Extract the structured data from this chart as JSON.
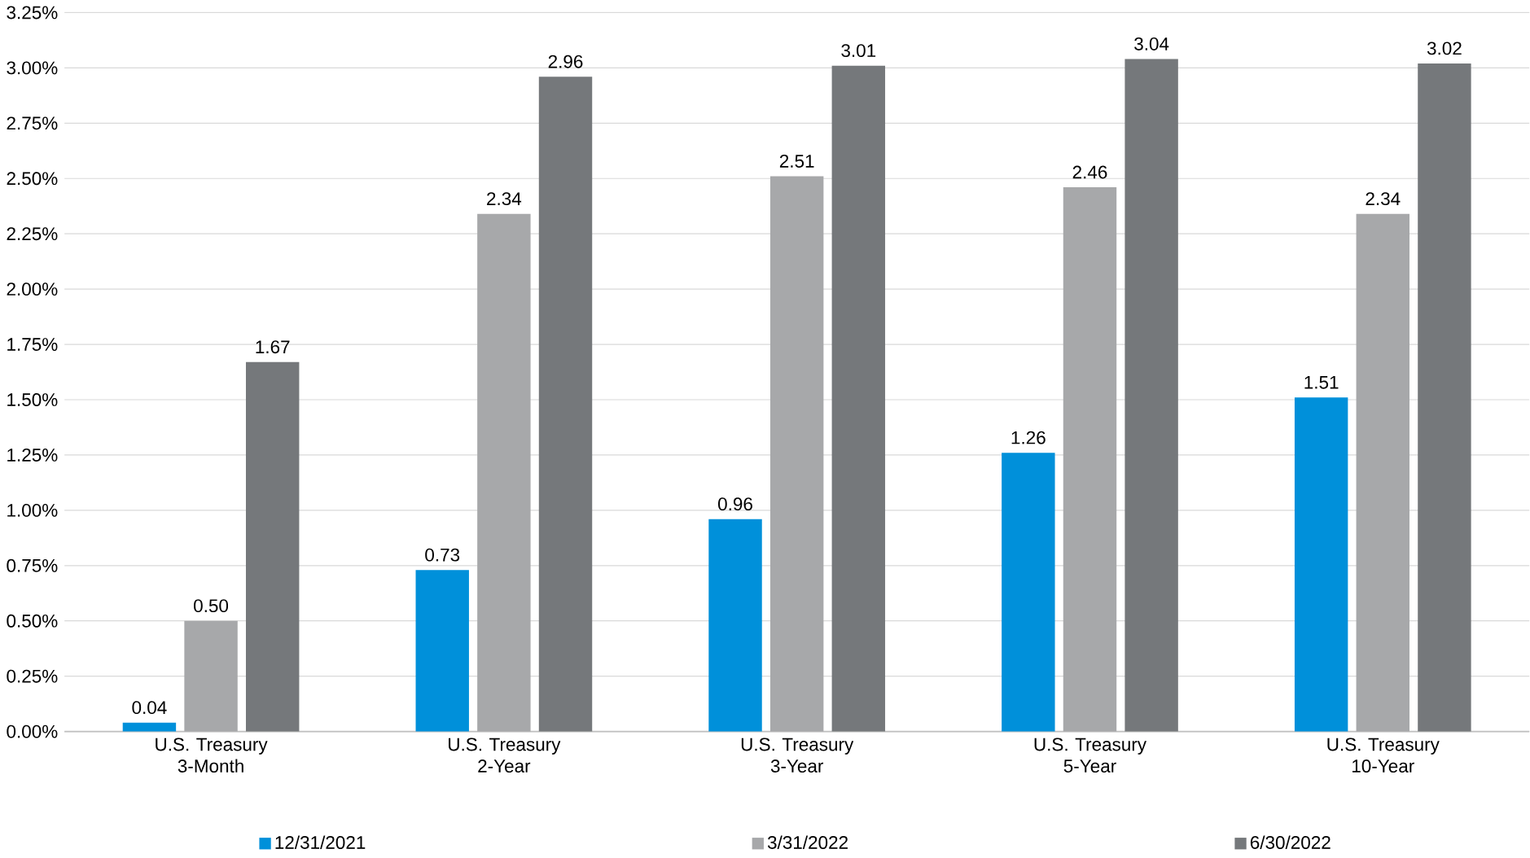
{
  "chart_data": {
    "type": "bar",
    "categories": [
      "U.S. Treasury 3-Month",
      "U.S. Treasury 2-Year",
      "U.S. Treasury 3-Year",
      "U.S. Treasury 5-Year",
      "U.S. Treasury 10-Year"
    ],
    "series": [
      {
        "name": "12/31/2021",
        "color": "#0090da",
        "values": [
          0.04,
          0.73,
          0.96,
          1.26,
          1.51
        ],
        "value_labels": [
          "0.04",
          "0.73",
          "0.96",
          "1.26",
          "1.51"
        ]
      },
      {
        "name": "3/31/2022",
        "color": "#a7a8aa",
        "values": [
          0.5,
          2.34,
          2.51,
          2.46,
          2.34
        ],
        "value_labels": [
          "0.50",
          "2.34",
          "2.51",
          "2.46",
          "2.34"
        ]
      },
      {
        "name": "6/30/2022",
        "color": "#75787b",
        "values": [
          1.67,
          2.96,
          3.01,
          3.04,
          3.02
        ],
        "value_labels": [
          "1.67",
          "2.96",
          "3.01",
          "3.04",
          "3.02"
        ]
      }
    ],
    "ylim": [
      0,
      3.25
    ],
    "yticks": [
      {
        "value": 0,
        "label": "0.00%"
      },
      {
        "value": 0.25,
        "label": "0.25%"
      },
      {
        "value": 0.5,
        "label": "0.50%"
      },
      {
        "value": 0.75,
        "label": "0.75%"
      },
      {
        "value": 1,
        "label": "1.00%"
      },
      {
        "value": 1.25,
        "label": "1.25%"
      },
      {
        "value": 1.5,
        "label": "1.50%"
      },
      {
        "value": 1.75,
        "label": "1.75%"
      },
      {
        "value": 2,
        "label": "2.00%"
      },
      {
        "value": 2.25,
        "label": "2.25%"
      },
      {
        "value": 2.5,
        "label": "2.50%"
      },
      {
        "value": 2.75,
        "label": "2.75%"
      },
      {
        "value": 3,
        "label": "3.00%"
      },
      {
        "value": 3.25,
        "label": "3.25%"
      }
    ],
    "grid": "y",
    "legend": "bottom"
  }
}
